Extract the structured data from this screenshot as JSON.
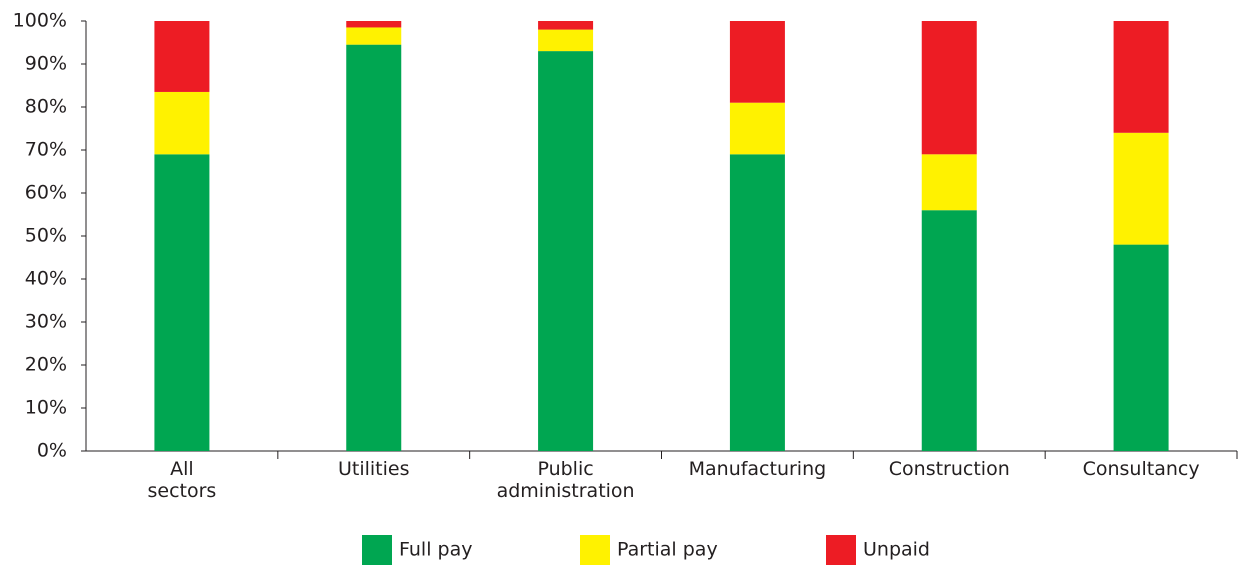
{
  "chart_data": {
    "type": "stacked-bar",
    "categories": [
      "All sectors",
      "Utilities",
      "Public administration",
      "Manufacturing",
      "Construction",
      "Consultancy"
    ],
    "series": [
      {
        "name": "Full pay",
        "color": "#00a651",
        "values": [
          69,
          94.5,
          93,
          69,
          56,
          48
        ]
      },
      {
        "name": "Partial pay",
        "color": "#fff200",
        "values": [
          14.5,
          4,
          5,
          12,
          13,
          26
        ]
      },
      {
        "name": "Unpaid",
        "color": "#ed1c24",
        "values": [
          16.5,
          1.5,
          2,
          19,
          31,
          26
        ]
      }
    ],
    "ylim": [
      0,
      100
    ],
    "yticks": [
      {
        "value": 0,
        "label": "0%"
      },
      {
        "value": 10,
        "label": "10%"
      },
      {
        "value": 20,
        "label": "20%"
      },
      {
        "value": 30,
        "label": "30%"
      },
      {
        "value": 40,
        "label": "40%"
      },
      {
        "value": 50,
        "label": "50%"
      },
      {
        "value": 60,
        "label": "60%"
      },
      {
        "value": 70,
        "label": "70%"
      },
      {
        "value": 80,
        "label": "80%"
      },
      {
        "value": 90,
        "label": "90%"
      },
      {
        "value": 100,
        "label": "100%"
      }
    ],
    "grid": false,
    "legend": "bottom"
  }
}
